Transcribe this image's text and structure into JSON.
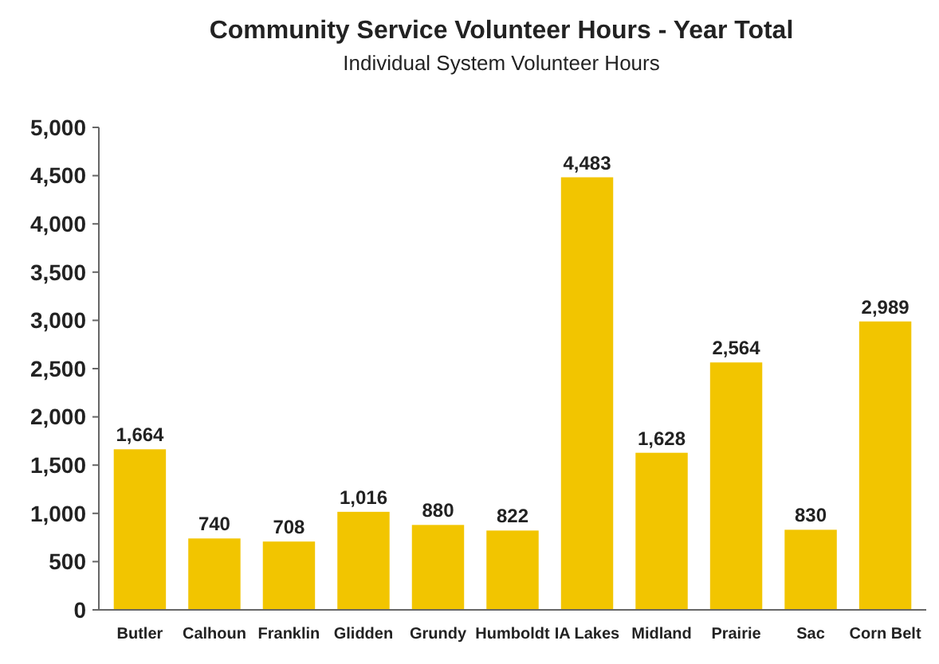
{
  "chart_data": {
    "type": "bar",
    "title": "Community Service Volunteer Hours - Year Total",
    "subtitle": "Individual System Volunteer Hours",
    "categories": [
      "Butler",
      "Calhoun",
      "Franklin",
      "Glidden",
      "Grundy",
      "Humboldt",
      "IA Lakes",
      "Midland",
      "Prairie",
      "Sac",
      "Corn Belt"
    ],
    "values": [
      1664,
      740,
      708,
      1016,
      880,
      822,
      4483,
      1628,
      2564,
      830,
      2989
    ],
    "color": "#f2c500",
    "grid": false,
    "value_labels": [
      "1,664",
      "740",
      "708",
      "1,016",
      "880",
      "822",
      "4,483",
      "1,628",
      "2,564",
      "830",
      "2,989"
    ],
    "ylim": [
      0,
      5000
    ],
    "yticks": [
      0,
      500,
      {
        "value": 1000,
        "label": "1,000"
      },
      {
        "value": 1500,
        "label": "1,500"
      },
      {
        "value": 2000,
        "label": "2,000"
      },
      {
        "value": 2500,
        "label": "2,500"
      },
      {
        "value": 3000,
        "label": "3,000"
      },
      {
        "value": 3500,
        "label": "3,500"
      },
      {
        "value": 4000,
        "label": "4,000"
      },
      {
        "value": 4500,
        "label": "4,500"
      },
      {
        "value": 5000,
        "label": "5,000"
      }
    ]
  }
}
